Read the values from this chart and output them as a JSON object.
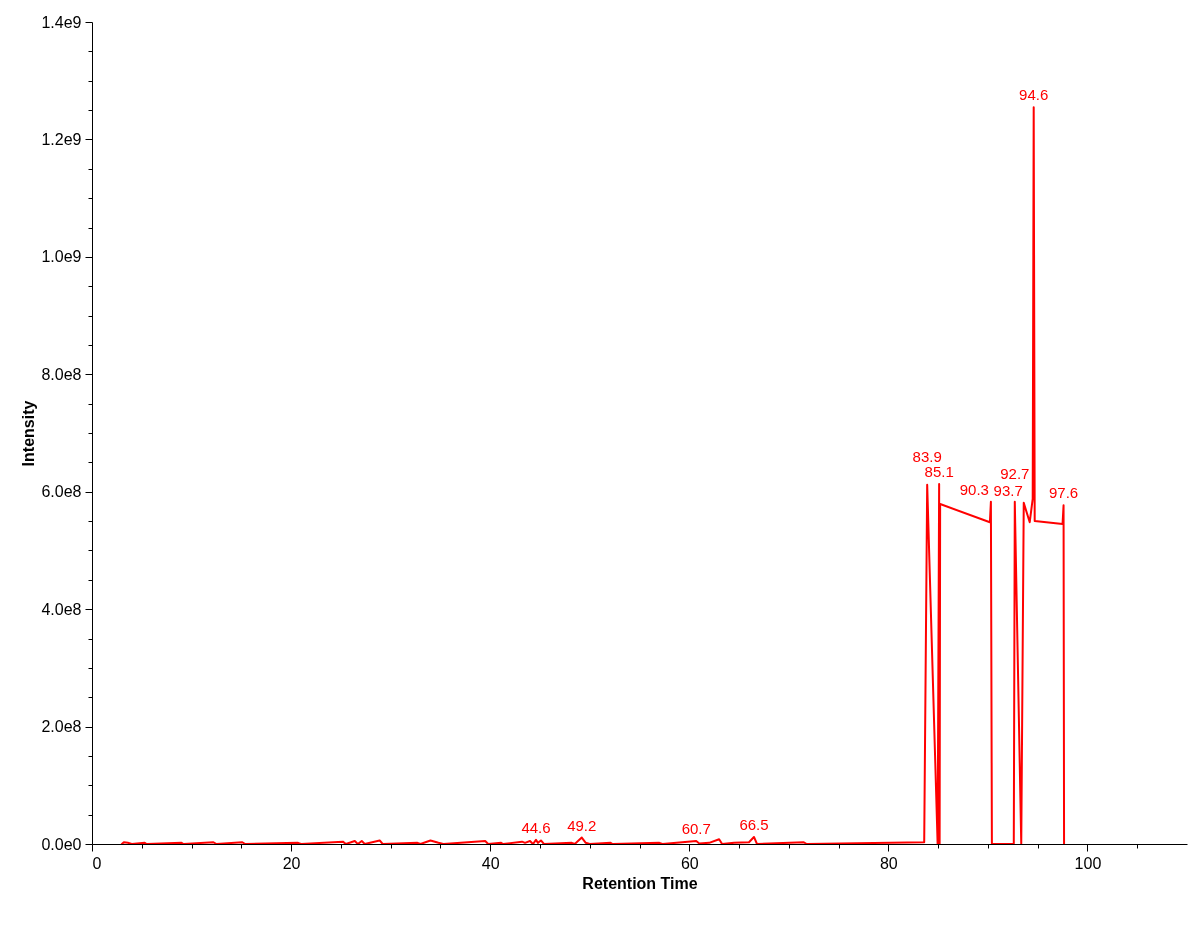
{
  "chart_data": {
    "type": "line",
    "xlabel": "Retention Time",
    "ylabel": "Intensity",
    "xlim": [
      0,
      110
    ],
    "xticks": [
      0,
      {
        "value": 5,
        "label": null
      },
      {
        "value": 10,
        "label": null
      },
      {
        "value": 15,
        "label": null
      },
      20,
      {
        "value": 25,
        "label": null
      },
      {
        "value": 30,
        "label": null
      },
      {
        "value": 35,
        "label": null
      },
      40,
      {
        "value": 45,
        "label": null
      },
      {
        "value": 50,
        "label": null
      },
      {
        "value": 55,
        "label": null
      },
      60,
      {
        "value": 65,
        "label": null
      },
      {
        "value": 70,
        "label": null
      },
      {
        "value": 75,
        "label": null
      },
      80,
      {
        "value": 85,
        "label": null
      },
      {
        "value": 90,
        "label": null
      },
      {
        "value": 95,
        "label": null
      },
      100,
      {
        "value": 105,
        "label": null
      }
    ],
    "ylim": [
      0,
      1400000000
    ],
    "yticks": [
      {
        "value": 0,
        "label": "0.0e0"
      },
      {
        "value": 50000000,
        "label": null
      },
      {
        "value": 100000000,
        "label": null
      },
      {
        "value": 150000000,
        "label": null
      },
      {
        "value": 200000000,
        "label": "2.0e8"
      },
      {
        "value": 250000000,
        "label": null
      },
      {
        "value": 300000000,
        "label": null
      },
      {
        "value": 350000000,
        "label": null
      },
      {
        "value": 400000000,
        "label": "4.0e8"
      },
      {
        "value": 450000000,
        "label": null
      },
      {
        "value": 500000000,
        "label": null
      },
      {
        "value": 550000000,
        "label": null
      },
      {
        "value": 600000000,
        "label": "6.0e8"
      },
      {
        "value": 650000000,
        "label": null
      },
      {
        "value": 700000000,
        "label": null
      },
      {
        "value": 750000000,
        "label": null
      },
      {
        "value": 800000000,
        "label": "8.0e8"
      },
      {
        "value": 850000000,
        "label": null
      },
      {
        "value": 900000000,
        "label": null
      },
      {
        "value": 950000000,
        "label": null
      },
      {
        "value": 1000000000,
        "label": "1.0e9"
      },
      {
        "value": 1050000000,
        "label": null
      },
      {
        "value": 1100000000,
        "label": null
      },
      {
        "value": 1150000000,
        "label": null
      },
      {
        "value": 1200000000,
        "label": "1.2e9"
      },
      {
        "value": 1250000000,
        "label": null
      },
      {
        "value": 1300000000,
        "label": null
      },
      {
        "value": 1350000000,
        "label": null
      },
      {
        "value": 1400000000,
        "label": "1.4e9"
      }
    ],
    "series": [
      {
        "color": "#ff0000",
        "x": [
          3.0,
          3.2,
          3.6,
          4.0,
          5.3,
          5.5,
          9.0,
          9.2,
          12.2,
          12.5,
          15.1,
          15.4,
          20.7,
          21.0,
          25.2,
          25.5,
          26.4,
          26.7,
          27.1,
          27.4,
          28.9,
          29.2,
          32.7,
          33.0,
          34.0,
          34.8,
          35.3,
          39.5,
          39.8,
          41.1,
          41.3,
          43.2,
          43.5,
          44.0,
          44.3,
          44.6,
          44.8,
          45.1,
          45.4,
          48.2,
          48.5,
          49.2,
          49.6,
          50.0,
          52.1,
          52.3,
          57.0,
          57.3,
          60.7,
          61.0,
          62.0,
          63.0,
          63.3,
          64.5,
          66.0,
          66.5,
          66.8,
          71.5,
          71.8,
          83.6,
          83.9,
          84.95,
          85.1,
          85.15,
          85.2,
          90.2,
          90.3,
          90.4,
          92.6,
          92.7,
          93.35,
          93.6,
          94.2,
          94.5,
          94.6,
          94.7,
          97.5,
          97.6,
          97.65
        ],
        "values": [
          0,
          3000000,
          2000000,
          0,
          2000000,
          0,
          2000000,
          0,
          3000000,
          0,
          3000000,
          0,
          2000000,
          0,
          4000000,
          0,
          5000000,
          0,
          5000000,
          0,
          6000000,
          0,
          2000000,
          0,
          6000000,
          2000000,
          0,
          5000000,
          0,
          2000000,
          0,
          4000000,
          2000000,
          5000000,
          0,
          7000000,
          2000000,
          6000000,
          0,
          2000000,
          0,
          11000000,
          2000000,
          0,
          2000000,
          0,
          2000000,
          0,
          5000000,
          1000000,
          2000000,
          8000000,
          0,
          2000000,
          3000000,
          12000000,
          0,
          3000000,
          0,
          3000000,
          612000000,
          0,
          613000000,
          0,
          579000000,
          548000000,
          583000000,
          0,
          0,
          583000000,
          0,
          581000000,
          548000000,
          588000000,
          1255000000,
          550000000,
          545000000,
          577000000,
          0
        ]
      }
    ],
    "annotations": [
      {
        "text": "44.6",
        "x": 44.6,
        "y": 7000000
      },
      {
        "text": "49.2",
        "x": 49.2,
        "y": 11000000
      },
      {
        "text": "60.7",
        "x": 60.7,
        "y": 5000000
      },
      {
        "text": "66.5",
        "x": 66.5,
        "y": 12000000
      },
      {
        "text": "83.9",
        "x": 83.9,
        "y": 612000000
      },
      {
        "text": "85.1",
        "x": 85.1,
        "y": 613000000
      },
      {
        "text": "90.3",
        "x": 90.3,
        "y": 583000000
      },
      {
        "text": "92.7",
        "x": 92.7,
        "y": 583000000
      },
      {
        "text": "93.7",
        "x": 93.7,
        "y": 581000000
      },
      {
        "text": "94.6",
        "x": 94.6,
        "y": 1255000000
      },
      {
        "text": "97.6",
        "x": 97.6,
        "y": 577000000
      }
    ]
  }
}
